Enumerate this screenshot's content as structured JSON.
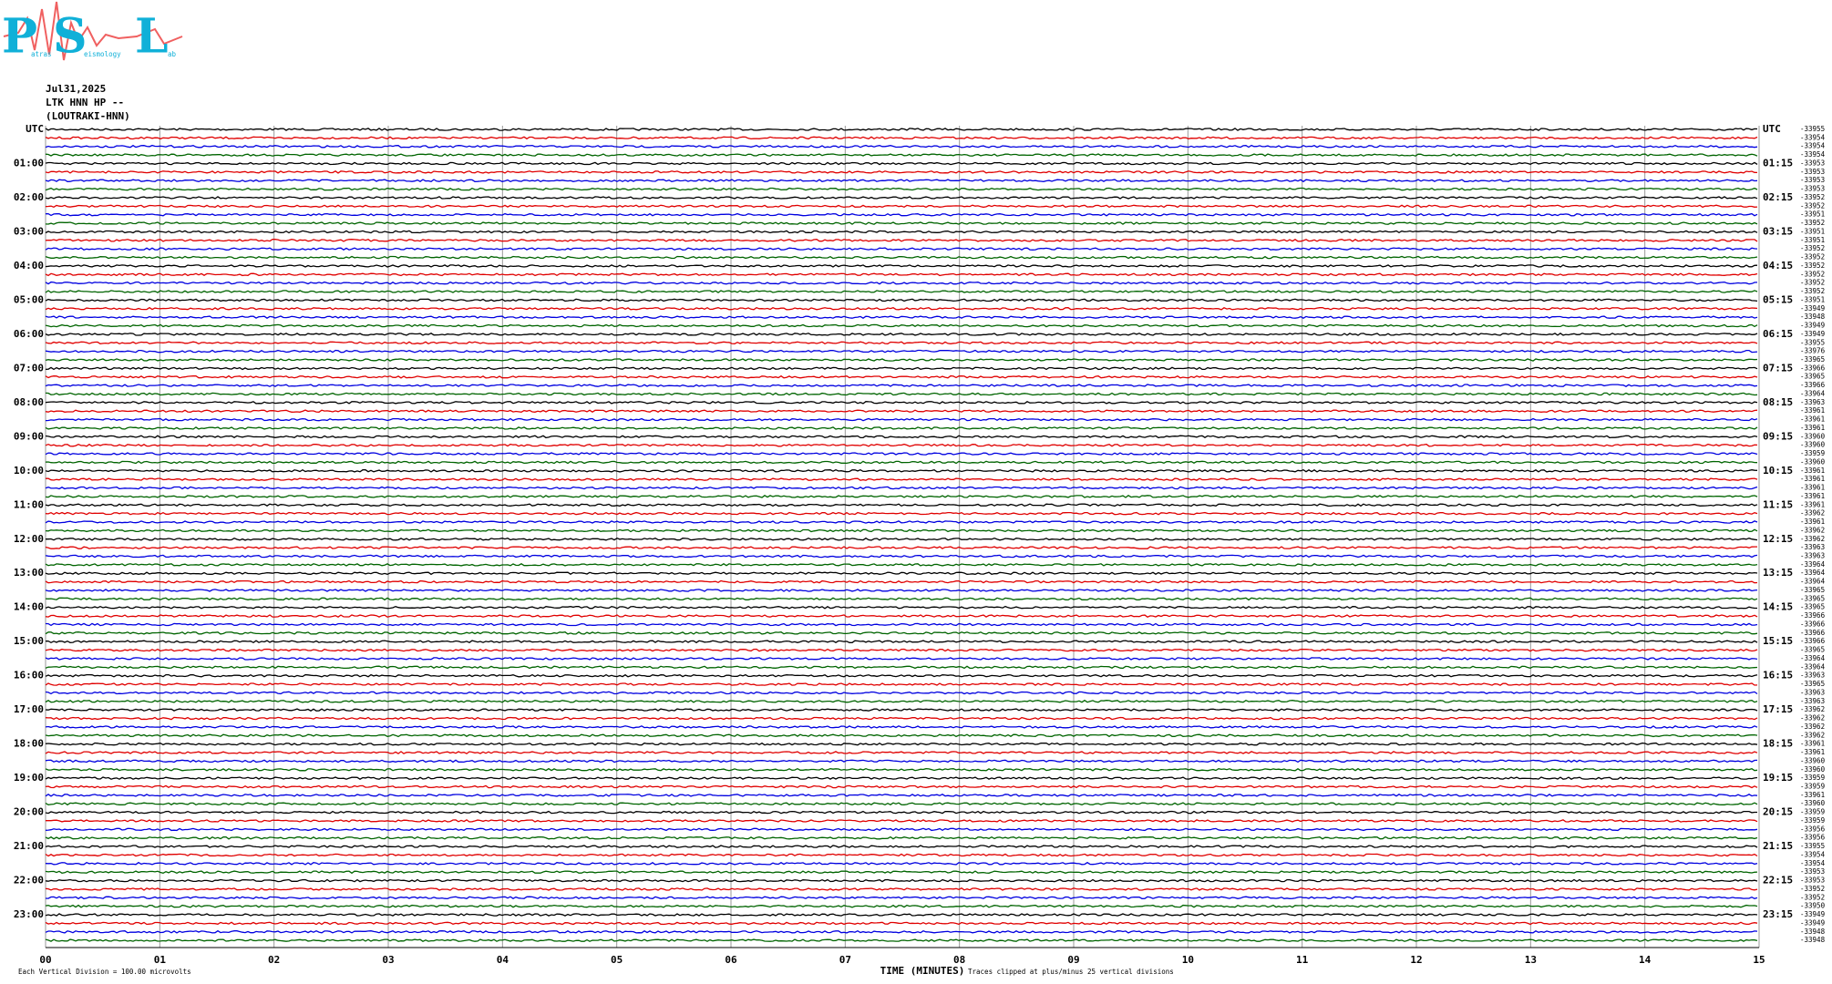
{
  "logo": {
    "letters": [
      "P",
      "S",
      "L"
    ],
    "words": [
      "atras",
      "eismology",
      "ab"
    ]
  },
  "header": {
    "date": "Jul31,2025",
    "station": "LTK HNN HP --",
    "location": "(LOUTRAKI-HNN)"
  },
  "left_labels": [
    "UTC",
    "01:00",
    "02:00",
    "03:00",
    "04:00",
    "05:00",
    "06:00",
    "07:00",
    "08:00",
    "09:00",
    "10:00",
    "11:00",
    "12:00",
    "13:00",
    "14:00",
    "15:00",
    "16:00",
    "17:00",
    "18:00",
    "19:00",
    "20:00",
    "21:00",
    "22:00",
    "23:00"
  ],
  "right_labels": [
    "UTC",
    "01:15",
    "02:15",
    "03:15",
    "04:15",
    "05:15",
    "06:15",
    "07:15",
    "08:15",
    "09:15",
    "10:15",
    "11:15",
    "12:15",
    "13:15",
    "14:15",
    "15:15",
    "16:15",
    "17:15",
    "18:15",
    "19:15",
    "20:15",
    "21:15",
    "22:15",
    "23:15"
  ],
  "offsets": [
    -33955,
    -33954,
    -33954,
    -33954,
    -33953,
    -33953,
    -33953,
    -33953,
    -33952,
    -33952,
    -33951,
    -33952,
    -33951,
    -33951,
    -33952,
    -33952,
    -33952,
    -33952,
    -33952,
    -33952,
    -33951,
    -33949,
    -33948,
    -33949,
    -33949,
    -33955,
    -33976,
    -33965,
    -33966,
    -33965,
    -33966,
    -33964,
    -33963,
    -33961,
    -33961,
    -33961,
    -33960,
    -33960,
    -33959,
    -33960,
    -33961,
    -33961,
    -33961,
    -33961,
    -33961,
    -33962,
    -33961,
    -33962,
    -33962,
    -33963,
    -33963,
    -33964,
    -33964,
    -33964,
    -33965,
    -33965,
    -33965,
    -33966,
    -33966,
    -33966,
    -33966,
    -33965,
    -33964,
    -33964,
    -33963,
    -33965,
    -33963,
    -33963,
    -33962,
    -33962,
    -33962,
    -33962,
    -33961,
    -33961,
    -33960,
    -33960,
    -33959,
    -33959,
    -33961,
    -33960,
    -33959,
    -33959,
    -33956,
    -33956,
    -33955,
    -33954,
    -33954,
    -33953,
    -33953,
    -33952,
    -33952,
    -33950,
    -33949,
    -33949,
    -33948,
    -33948
  ],
  "trace_colors": [
    "#000000",
    "#e00000",
    "#0000e0",
    "#006400"
  ],
  "x_axis": {
    "label": "TIME (MINUTES)",
    "ticks": [
      {
        "value": 0,
        "label": "00"
      },
      {
        "value": 1,
        "label": "01"
      },
      {
        "value": 2,
        "label": "02"
      },
      {
        "value": 3,
        "label": "03"
      },
      {
        "value": 4,
        "label": "04"
      },
      {
        "value": 5,
        "label": "05"
      },
      {
        "value": 6,
        "label": "06"
      },
      {
        "value": 7,
        "label": "07"
      },
      {
        "value": 8,
        "label": "08"
      },
      {
        "value": 9,
        "label": "09"
      },
      {
        "value": 10,
        "label": "10"
      },
      {
        "value": 11,
        "label": "11"
      },
      {
        "value": 12,
        "label": "12"
      },
      {
        "value": 13,
        "label": "13"
      },
      {
        "value": 14,
        "label": "14"
      },
      {
        "value": 15,
        "label": "15"
      }
    ]
  },
  "footer": {
    "scale": "Each Vertical Division =  100.00 microvolts",
    "clip": "Traces clipped at plus/minus 25 vertical divisions"
  }
}
